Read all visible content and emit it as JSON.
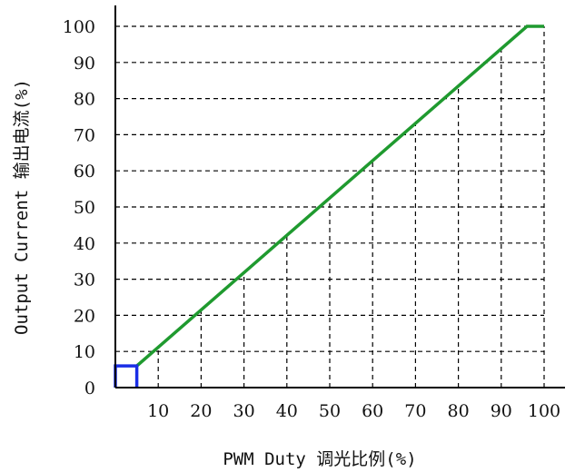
{
  "chart_data": {
    "type": "line",
    "xlabel": "PWM Duty 调光比例(%)",
    "ylabel": "Output Current 输出电流(%)",
    "xlim": [
      0,
      105
    ],
    "ylim": [
      0,
      105
    ],
    "x_ticks": [
      "10",
      "20",
      "30",
      "40",
      "50",
      "60",
      "70",
      "80",
      "90",
      "100"
    ],
    "y_ticks": [
      "0",
      "10",
      "20",
      "30",
      "40",
      "50",
      "60",
      "70",
      "80",
      "90",
      "100"
    ],
    "grid": true,
    "series": [
      {
        "color": "#1f9a2f",
        "points": [
          [
            5,
            6
          ],
          [
            96,
            100
          ],
          [
            100,
            100
          ]
        ]
      },
      {
        "color": "#1a2ee6",
        "points": [
          [
            0,
            0
          ],
          [
            0,
            6
          ],
          [
            5,
            6
          ],
          [
            5,
            0
          ]
        ]
      }
    ]
  }
}
